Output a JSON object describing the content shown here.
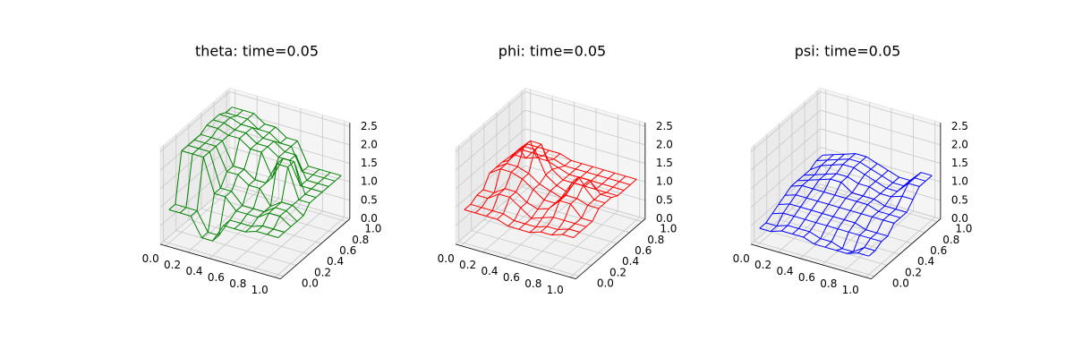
{
  "chart_data": [
    {
      "type": "wireframe",
      "title": "theta: time=0.05",
      "color": "#008000",
      "x": [
        0,
        0.1,
        0.2,
        0.3,
        0.4,
        0.5,
        0.6,
        0.7,
        0.8,
        0.9,
        1
      ],
      "y": [
        0,
        0.1,
        0.2,
        0.3,
        0.4,
        0.5,
        0.6,
        0.7,
        0.8,
        0.9,
        1
      ],
      "z": [
        [
          0.9,
          0.9,
          0.9,
          0.4,
          0.4,
          0.9,
          0.9,
          0.9,
          1.0,
          1.0,
          1.0
        ],
        [
          0.9,
          0.9,
          0.9,
          0.4,
          0.4,
          0.9,
          0.9,
          0.9,
          1.0,
          1.0,
          1.0
        ],
        [
          2.2,
          2.2,
          2.2,
          1.3,
          1.3,
          1.0,
          1.0,
          1.0,
          1.2,
          1.2,
          1.0
        ],
        [
          2.2,
          2.2,
          2.2,
          1.3,
          1.3,
          1.0,
          1.0,
          1.0,
          1.2,
          1.2,
          1.0
        ],
        [
          2.2,
          2.2,
          2.2,
          1.6,
          1.6,
          1.4,
          1.4,
          1.0,
          1.2,
          1.2,
          1.0
        ],
        [
          2.2,
          2.2,
          2.2,
          1.6,
          1.6,
          1.4,
          1.4,
          2.0,
          2.0,
          1.2,
          1.2
        ],
        [
          2.3,
          2.3,
          2.2,
          2.2,
          2.0,
          2.0,
          1.4,
          2.0,
          2.0,
          1.2,
          1.2
        ],
        [
          2.3,
          2.3,
          2.2,
          2.2,
          2.0,
          2.0,
          1.8,
          1.8,
          1.2,
          1.2,
          1.2
        ],
        [
          2.3,
          2.3,
          2.2,
          2.2,
          2.0,
          2.0,
          1.8,
          1.8,
          1.2,
          1.2,
          1.2
        ],
        [
          2.2,
          2.2,
          2.2,
          2.0,
          2.0,
          1.8,
          1.8,
          1.2,
          1.2,
          1.2,
          1.2
        ],
        [
          2.2,
          2.2,
          2.2,
          2.0,
          2.0,
          1.8,
          1.8,
          1.2,
          1.2,
          1.2,
          1.2
        ]
      ],
      "xlim": [
        -0.05,
        1.05
      ],
      "ylim": [
        -0.05,
        1.05
      ],
      "zlim": [
        0,
        2.6
      ],
      "xticks": [
        {
          "value": 0,
          "label": "0.0"
        },
        0.2,
        0.4,
        0.6,
        0.8,
        {
          "value": 1,
          "label": "1.0"
        }
      ],
      "yticks": [
        {
          "value": 0,
          "label": "0.0"
        },
        0.2,
        0.4,
        0.6,
        0.8,
        {
          "value": 1,
          "label": "1.0"
        }
      ],
      "zticks": [
        {
          "value": 0,
          "label": "0.0"
        },
        0.5,
        {
          "value": 1,
          "label": "1.0"
        },
        1.5,
        {
          "value": 2,
          "label": "2.0"
        },
        2.5
      ]
    },
    {
      "type": "wireframe",
      "title": "phi: time=0.05",
      "color": "#ff0000",
      "x": [
        0,
        0.1,
        0.2,
        0.3,
        0.4,
        0.5,
        0.6,
        0.7,
        0.8,
        0.9,
        1
      ],
      "y": [
        0,
        0.1,
        0.2,
        0.3,
        0.4,
        0.5,
        0.6,
        0.7,
        0.8,
        0.9,
        1
      ],
      "z": [
        [
          0.9,
          0.9,
          0.9,
          0.9,
          0.8,
          0.8,
          0.8,
          0.9,
          0.9,
          1.0,
          1.0
        ],
        [
          0.9,
          0.9,
          0.9,
          0.9,
          0.8,
          0.8,
          0.8,
          0.9,
          0.9,
          1.0,
          1.0
        ],
        [
          1.0,
          1.0,
          1.2,
          1.2,
          1.0,
          0.8,
          0.9,
          1.0,
          1.0,
          1.0,
          1.0
        ],
        [
          1.0,
          1.0,
          1.2,
          1.2,
          1.0,
          0.9,
          1.0,
          1.3,
          1.3,
          1.0,
          1.0
        ],
        [
          1.3,
          1.5,
          1.5,
          1.4,
          1.2,
          1.0,
          1.0,
          1.3,
          1.3,
          1.2,
          1.2
        ],
        [
          1.3,
          1.5,
          1.5,
          1.4,
          1.2,
          1.1,
          1.0,
          1.5,
          1.5,
          1.2,
          1.2
        ],
        [
          1.3,
          1.6,
          1.9,
          1.9,
          1.3,
          1.1,
          1.0,
          1.5,
          1.5,
          1.2,
          1.2
        ],
        [
          1.2,
          1.6,
          1.9,
          1.9,
          1.3,
          1.1,
          1.1,
          1.1,
          1.1,
          1.1,
          1.1
        ],
        [
          1.2,
          1.2,
          1.3,
          1.3,
          1.2,
          1.1,
          1.1,
          1.1,
          1.1,
          1.1,
          1.1
        ],
        [
          1.2,
          1.2,
          1.2,
          1.2,
          1.1,
          1.1,
          1.1,
          1.1,
          1.1,
          1.1,
          1.1
        ],
        [
          1.2,
          1.2,
          1.2,
          1.2,
          1.1,
          1.1,
          1.1,
          1.1,
          1.1,
          1.1,
          1.1
        ]
      ],
      "xlim": [
        -0.05,
        1.05
      ],
      "ylim": [
        -0.05,
        1.05
      ],
      "zlim": [
        0,
        2.6
      ],
      "xticks": [
        {
          "value": 0,
          "label": "0.0"
        },
        0.2,
        0.4,
        0.6,
        0.8,
        {
          "value": 1,
          "label": "1.0"
        }
      ],
      "yticks": [
        {
          "value": 0,
          "label": "0.0"
        },
        0.2,
        0.4,
        0.6,
        0.8,
        {
          "value": 1,
          "label": "1.0"
        }
      ],
      "zticks": [
        {
          "value": 0,
          "label": "0.0"
        },
        0.5,
        {
          "value": 1,
          "label": "1.0"
        },
        1.5,
        {
          "value": 2,
          "label": "2.0"
        },
        2.5
      ]
    },
    {
      "type": "wireframe",
      "title": "psi: time=0.05",
      "color": "#0000ff",
      "x": [
        0,
        0.1,
        0.2,
        0.3,
        0.4,
        0.5,
        0.6,
        0.7,
        0.8,
        0.9,
        1
      ],
      "y": [
        0,
        0.1,
        0.2,
        0.3,
        0.4,
        0.5,
        0.6,
        0.7,
        0.8,
        0.9,
        1
      ],
      "z": [
        [
          0.4,
          0.4,
          0.5,
          0.5,
          0.5,
          0.4,
          0.4,
          0.4,
          0.4,
          0.5,
          0.5
        ],
        [
          0.4,
          0.4,
          0.5,
          0.5,
          0.5,
          0.4,
          0.4,
          0.3,
          0.3,
          0.5,
          0.5
        ],
        [
          0.5,
          0.6,
          0.6,
          0.6,
          0.6,
          0.6,
          0.6,
          0.6,
          0.6,
          0.6,
          0.6
        ],
        [
          0.6,
          0.7,
          0.7,
          0.7,
          0.7,
          0.7,
          0.7,
          0.7,
          0.6,
          0.6,
          0.6
        ],
        [
          0.7,
          0.8,
          0.8,
          0.8,
          0.8,
          0.8,
          0.8,
          0.8,
          0.8,
          0.8,
          0.8
        ],
        [
          0.8,
          0.9,
          0.9,
          0.9,
          0.9,
          0.9,
          0.9,
          0.9,
          0.8,
          0.8,
          0.8
        ],
        [
          0.8,
          0.9,
          1.0,
          1.1,
          1.1,
          0.9,
          0.9,
          0.9,
          0.8,
          0.8,
          0.8
        ],
        [
          0.8,
          0.9,
          1.0,
          1.1,
          1.1,
          1.0,
          1.0,
          0.9,
          0.9,
          1.0,
          1.0
        ],
        [
          0.8,
          1.0,
          1.1,
          1.2,
          1.2,
          1.1,
          1.0,
          0.9,
          0.9,
          1.2,
          1.2
        ],
        [
          0.9,
          1.0,
          1.1,
          1.2,
          1.2,
          1.1,
          1.0,
          0.9,
          0.9,
          1.2,
          1.2
        ],
        [
          0.9,
          1.0,
          1.1,
          1.2,
          1.2,
          1.1,
          1.0,
          0.9,
          0.9,
          1.2,
          1.2
        ]
      ],
      "xlim": [
        -0.05,
        1.05
      ],
      "ylim": [
        -0.05,
        1.05
      ],
      "zlim": [
        0,
        2.6
      ],
      "xticks": [
        {
          "value": 0,
          "label": "0.0"
        },
        0.2,
        0.4,
        0.6,
        0.8,
        {
          "value": 1,
          "label": "1.0"
        }
      ],
      "yticks": [
        {
          "value": 0,
          "label": "0.0"
        },
        0.2,
        0.4,
        0.6,
        0.8,
        {
          "value": 1,
          "label": "1.0"
        }
      ],
      "zticks": [
        {
          "value": 0,
          "label": "0.0"
        },
        0.5,
        {
          "value": 1,
          "label": "1.0"
        },
        1.5,
        {
          "value": 2,
          "label": "2.0"
        },
        2.5
      ]
    }
  ]
}
